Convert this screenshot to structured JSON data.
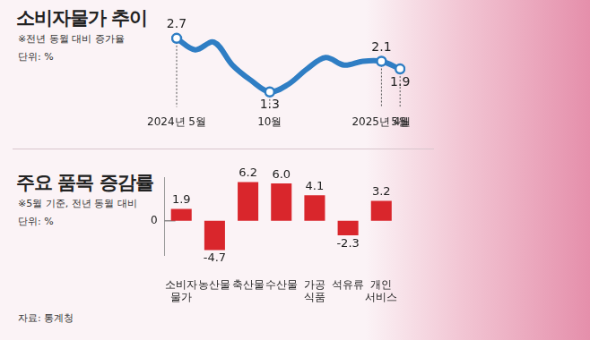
{
  "chart_data": [
    {
      "type": "line",
      "title": "소비자물가 추이",
      "subtitle": "※전년 동월 대비 증가율",
      "annotations": [
        "단위: %"
      ],
      "categories": [
        "2024년 5월",
        null,
        null,
        null,
        null,
        "10월",
        null,
        null,
        null,
        null,
        null,
        "2025년 4월",
        "5월"
      ],
      "values": [
        2.7,
        2.4,
        2.6,
        2.0,
        1.6,
        1.3,
        1.5,
        1.9,
        2.2,
        2.0,
        2.1,
        2.1,
        1.9
      ],
      "value_labels": [
        "2.7",
        null,
        null,
        null,
        null,
        "1.3",
        null,
        null,
        null,
        null,
        null,
        "2.1",
        "1.9"
      ],
      "data_labels": true,
      "color": "#2f7ec4",
      "ylim": [
        1.0,
        3.0
      ],
      "grid": false,
      "tick_labels": "x"
    },
    {
      "type": "bar",
      "title": "주요 품목 증감률",
      "subtitle": "※5월 기준, 전년 동월 대비",
      "annotations": [
        "단위: %"
      ],
      "categories": [
        [
          "소비자",
          "물가"
        ],
        "농산물",
        "축산물",
        "수산물",
        [
          "가공",
          "식품"
        ],
        "석유류",
        [
          "개인",
          "서비스"
        ]
      ],
      "values": [
        1.9,
        -4.7,
        6.2,
        6.0,
        4.1,
        -2.3,
        3.2
      ],
      "value_labels": [
        "1.9",
        "-4.7",
        "6.2",
        "6.0",
        "4.1",
        "-2.3",
        "3.2"
      ],
      "data_labels": true,
      "color": "#d9262c",
      "ylim": [
        -5.5,
        7.0
      ],
      "yticks": [
        0
      ],
      "grid": false
    }
  ],
  "source": "자료: 통계청"
}
